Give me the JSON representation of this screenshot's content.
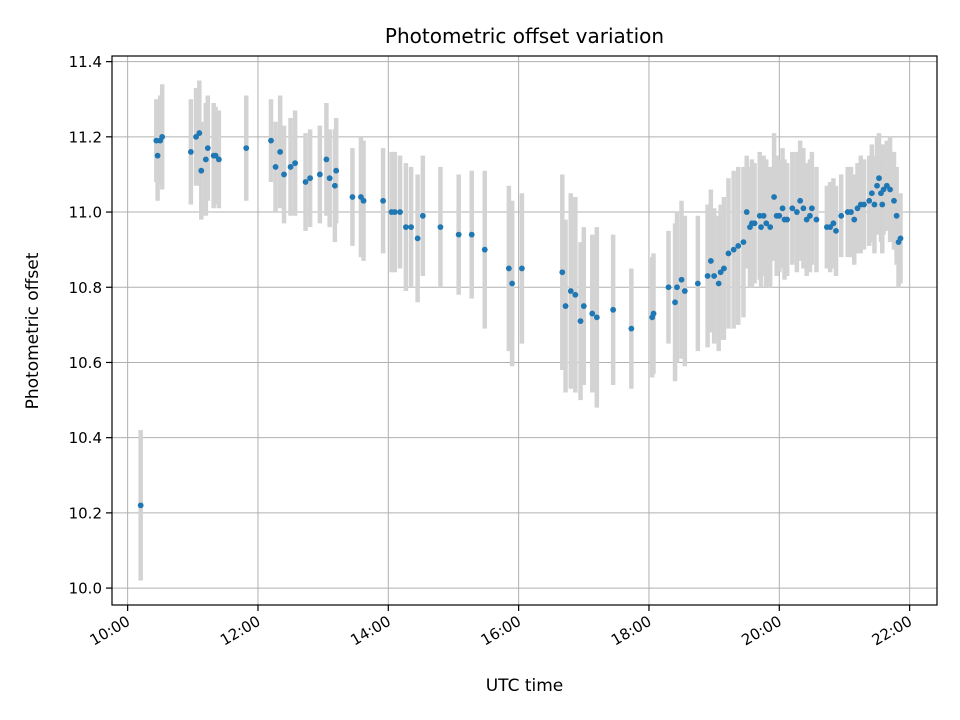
{
  "chart_data": {
    "type": "scatter",
    "title": "Photometric offset variation",
    "xlabel": "UTC time",
    "ylabel": "Photometric offset",
    "x_unit": "hours UTC",
    "xlim": [
      9.76,
      22.42
    ],
    "ylim": [
      9.955,
      11.415
    ],
    "x_ticks": [
      {
        "value": 10,
        "label": "10:00"
      },
      {
        "value": 12,
        "label": "12:00"
      },
      {
        "value": 14,
        "label": "14:00"
      },
      {
        "value": 16,
        "label": "16:00"
      },
      {
        "value": 18,
        "label": "18:00"
      },
      {
        "value": 20,
        "label": "20:00"
      },
      {
        "value": 22,
        "label": "22:00"
      }
    ],
    "y_ticks": [
      {
        "value": 10.0,
        "label": "10.0"
      },
      {
        "value": 10.2,
        "label": "10.2"
      },
      {
        "value": 10.4,
        "label": "10.4"
      },
      {
        "value": 10.6,
        "label": "10.6"
      },
      {
        "value": 10.8,
        "label": "10.8"
      },
      {
        "value": 11.0,
        "label": "11.0"
      },
      {
        "value": 11.2,
        "label": "11.2"
      },
      {
        "value": 11.4,
        "label": "11.4"
      }
    ],
    "grid": true,
    "colors": {
      "points": "#1f77b4",
      "error_bars": "#d3d3d3",
      "grid": "#b0b0b0"
    },
    "series": [
      {
        "points": [
          {
            "x": 10.2,
            "y": 10.22,
            "err": 0.2
          },
          {
            "x": 10.44,
            "y": 11.19,
            "err": 0.11
          },
          {
            "x": 10.46,
            "y": 11.15,
            "err": 0.12
          },
          {
            "x": 10.5,
            "y": 11.19,
            "err": 0.12
          },
          {
            "x": 10.53,
            "y": 11.2,
            "err": 0.14
          },
          {
            "x": 10.97,
            "y": 11.16,
            "err": 0.14
          },
          {
            "x": 11.05,
            "y": 11.2,
            "err": 0.13
          },
          {
            "x": 11.1,
            "y": 11.21,
            "err": 0.14
          },
          {
            "x": 11.13,
            "y": 11.11,
            "err": 0.13
          },
          {
            "x": 11.2,
            "y": 11.14,
            "err": 0.15
          },
          {
            "x": 11.23,
            "y": 11.17,
            "err": 0.14
          },
          {
            "x": 11.32,
            "y": 11.15,
            "err": 0.14
          },
          {
            "x": 11.35,
            "y": 11.15,
            "err": 0.13
          },
          {
            "x": 11.4,
            "y": 11.14,
            "err": 0.13
          },
          {
            "x": 11.82,
            "y": 11.17,
            "err": 0.14
          },
          {
            "x": 12.2,
            "y": 11.19,
            "err": 0.11
          },
          {
            "x": 12.27,
            "y": 11.12,
            "err": 0.12
          },
          {
            "x": 12.34,
            "y": 11.16,
            "err": 0.15
          },
          {
            "x": 12.4,
            "y": 11.1,
            "err": 0.13
          },
          {
            "x": 12.5,
            "y": 11.12,
            "err": 0.13
          },
          {
            "x": 12.57,
            "y": 11.13,
            "err": 0.14
          },
          {
            "x": 12.73,
            "y": 11.08,
            "err": 0.13
          },
          {
            "x": 12.8,
            "y": 11.09,
            "err": 0.13
          },
          {
            "x": 12.95,
            "y": 11.1,
            "err": 0.13
          },
          {
            "x": 13.05,
            "y": 11.14,
            "err": 0.15
          },
          {
            "x": 13.1,
            "y": 11.09,
            "err": 0.13
          },
          {
            "x": 13.18,
            "y": 11.07,
            "err": 0.15
          },
          {
            "x": 13.2,
            "y": 11.11,
            "err": 0.14
          },
          {
            "x": 13.45,
            "y": 11.04,
            "err": 0.13
          },
          {
            "x": 13.58,
            "y": 11.04,
            "err": 0.16
          },
          {
            "x": 13.62,
            "y": 11.03,
            "err": 0.16
          },
          {
            "x": 13.92,
            "y": 11.03,
            "err": 0.14
          },
          {
            "x": 14.05,
            "y": 11.0,
            "err": 0.16
          },
          {
            "x": 14.1,
            "y": 11.0,
            "err": 0.16
          },
          {
            "x": 14.18,
            "y": 11.0,
            "err": 0.15
          },
          {
            "x": 14.27,
            "y": 10.96,
            "err": 0.17
          },
          {
            "x": 14.35,
            "y": 10.96,
            "err": 0.16
          },
          {
            "x": 14.45,
            "y": 10.93,
            "err": 0.17
          },
          {
            "x": 14.53,
            "y": 10.99,
            "err": 0.16
          },
          {
            "x": 14.8,
            "y": 10.96,
            "err": 0.16
          },
          {
            "x": 15.08,
            "y": 10.94,
            "err": 0.16
          },
          {
            "x": 15.28,
            "y": 10.94,
            "err": 0.17
          },
          {
            "x": 15.48,
            "y": 10.9,
            "err": 0.21
          },
          {
            "x": 15.85,
            "y": 10.85,
            "err": 0.22
          },
          {
            "x": 15.9,
            "y": 10.81,
            "err": 0.22
          },
          {
            "x": 16.05,
            "y": 10.85,
            "err": 0.2
          },
          {
            "x": 16.67,
            "y": 10.84,
            "err": 0.26
          },
          {
            "x": 16.72,
            "y": 10.75,
            "err": 0.23
          },
          {
            "x": 16.8,
            "y": 10.79,
            "err": 0.26
          },
          {
            "x": 16.87,
            "y": 10.78,
            "err": 0.26
          },
          {
            "x": 16.95,
            "y": 10.71,
            "err": 0.21
          },
          {
            "x": 17.0,
            "y": 10.75,
            "err": 0.21
          },
          {
            "x": 17.13,
            "y": 10.73,
            "err": 0.21
          },
          {
            "x": 17.2,
            "y": 10.72,
            "err": 0.24
          },
          {
            "x": 17.45,
            "y": 10.74,
            "err": 0.2
          },
          {
            "x": 17.73,
            "y": 10.69,
            "err": 0.16
          },
          {
            "x": 18.05,
            "y": 10.72,
            "err": 0.16
          },
          {
            "x": 18.07,
            "y": 10.73,
            "err": 0.16
          },
          {
            "x": 18.3,
            "y": 10.8,
            "err": 0.15
          },
          {
            "x": 18.4,
            "y": 10.76,
            "err": 0.21
          },
          {
            "x": 18.43,
            "y": 10.8,
            "err": 0.2
          },
          {
            "x": 18.5,
            "y": 10.82,
            "err": 0.21
          },
          {
            "x": 18.55,
            "y": 10.79,
            "err": 0.2
          },
          {
            "x": 18.75,
            "y": 10.81,
            "err": 0.18
          },
          {
            "x": 18.9,
            "y": 10.83,
            "err": 0.19
          },
          {
            "x": 18.95,
            "y": 10.87,
            "err": 0.19
          },
          {
            "x": 19.0,
            "y": 10.83,
            "err": 0.18
          },
          {
            "x": 19.07,
            "y": 10.81,
            "err": 0.18
          },
          {
            "x": 19.1,
            "y": 10.84,
            "err": 0.18
          },
          {
            "x": 19.15,
            "y": 10.85,
            "err": 0.19
          },
          {
            "x": 19.22,
            "y": 10.89,
            "err": 0.2
          },
          {
            "x": 19.3,
            "y": 10.9,
            "err": 0.21
          },
          {
            "x": 19.37,
            "y": 10.91,
            "err": 0.21
          },
          {
            "x": 19.45,
            "y": 10.92,
            "err": 0.2
          },
          {
            "x": 19.5,
            "y": 11.0,
            "err": 0.15
          },
          {
            "x": 19.55,
            "y": 10.96,
            "err": 0.16
          },
          {
            "x": 19.58,
            "y": 10.97,
            "err": 0.17
          },
          {
            "x": 19.62,
            "y": 10.97,
            "err": 0.16
          },
          {
            "x": 19.7,
            "y": 10.99,
            "err": 0.17
          },
          {
            "x": 19.72,
            "y": 10.96,
            "err": 0.16
          },
          {
            "x": 19.76,
            "y": 10.99,
            "err": 0.16
          },
          {
            "x": 19.8,
            "y": 10.97,
            "err": 0.17
          },
          {
            "x": 19.86,
            "y": 10.96,
            "err": 0.16
          },
          {
            "x": 19.92,
            "y": 11.04,
            "err": 0.17
          },
          {
            "x": 19.96,
            "y": 10.99,
            "err": 0.16
          },
          {
            "x": 20.0,
            "y": 10.99,
            "err": 0.15
          },
          {
            "x": 20.05,
            "y": 11.01,
            "err": 0.16
          },
          {
            "x": 20.08,
            "y": 10.98,
            "err": 0.16
          },
          {
            "x": 20.12,
            "y": 10.98,
            "err": 0.15
          },
          {
            "x": 20.2,
            "y": 11.01,
            "err": 0.15
          },
          {
            "x": 20.27,
            "y": 11.0,
            "err": 0.16
          },
          {
            "x": 20.32,
            "y": 11.03,
            "err": 0.16
          },
          {
            "x": 20.37,
            "y": 11.01,
            "err": 0.16
          },
          {
            "x": 20.42,
            "y": 10.98,
            "err": 0.15
          },
          {
            "x": 20.47,
            "y": 10.99,
            "err": 0.15
          },
          {
            "x": 20.5,
            "y": 11.01,
            "err": 0.15
          },
          {
            "x": 20.57,
            "y": 10.98,
            "err": 0.14
          },
          {
            "x": 20.73,
            "y": 10.96,
            "err": 0.11
          },
          {
            "x": 20.78,
            "y": 10.96,
            "err": 0.12
          },
          {
            "x": 20.83,
            "y": 10.97,
            "err": 0.12
          },
          {
            "x": 20.87,
            "y": 10.95,
            "err": 0.12
          },
          {
            "x": 20.95,
            "y": 10.99,
            "err": 0.11
          },
          {
            "x": 21.05,
            "y": 11.0,
            "err": 0.12
          },
          {
            "x": 21.1,
            "y": 11.0,
            "err": 0.12
          },
          {
            "x": 21.15,
            "y": 10.98,
            "err": 0.12
          },
          {
            "x": 21.2,
            "y": 11.01,
            "err": 0.12
          },
          {
            "x": 21.25,
            "y": 11.02,
            "err": 0.13
          },
          {
            "x": 21.3,
            "y": 11.02,
            "err": 0.12
          },
          {
            "x": 21.38,
            "y": 11.03,
            "err": 0.12
          },
          {
            "x": 21.42,
            "y": 11.05,
            "err": 0.13
          },
          {
            "x": 21.46,
            "y": 11.02,
            "err": 0.13
          },
          {
            "x": 21.5,
            "y": 11.07,
            "err": 0.13
          },
          {
            "x": 21.53,
            "y": 11.09,
            "err": 0.12
          },
          {
            "x": 21.56,
            "y": 11.05,
            "err": 0.13
          },
          {
            "x": 21.58,
            "y": 11.02,
            "err": 0.13
          },
          {
            "x": 21.6,
            "y": 11.06,
            "err": 0.12
          },
          {
            "x": 21.65,
            "y": 11.07,
            "err": 0.12
          },
          {
            "x": 21.7,
            "y": 11.06,
            "err": 0.14
          },
          {
            "x": 21.76,
            "y": 11.03,
            "err": 0.13
          },
          {
            "x": 21.8,
            "y": 10.99,
            "err": 0.13
          },
          {
            "x": 21.83,
            "y": 10.92,
            "err": 0.12
          },
          {
            "x": 21.86,
            "y": 10.93,
            "err": 0.12
          }
        ]
      }
    ]
  }
}
